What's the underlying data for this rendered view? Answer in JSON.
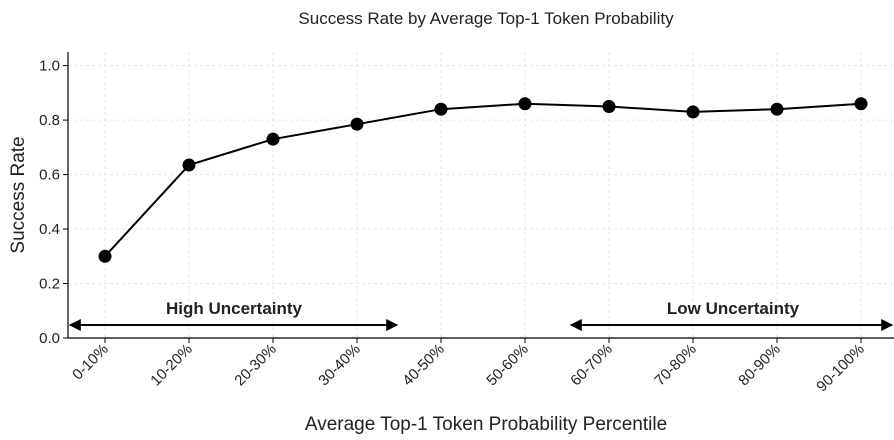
{
  "chart_data": {
    "type": "line",
    "title": "Success Rate by Average Top-1 Token Probability",
    "x_label": "Average Top-1 Token Probability Percentile",
    "y_label": "Success Rate",
    "categories": [
      "0-10%",
      "10-20%",
      "20-30%",
      "30-40%",
      "40-50%",
      "50-60%",
      "60-70%",
      "70-80%",
      "80-90%",
      "90-100%"
    ],
    "series": [
      {
        "name": "Success Rate",
        "color": "#000000",
        "values": [
          0.3,
          0.635,
          0.73,
          0.785,
          0.84,
          0.86,
          0.85,
          0.83,
          0.84,
          0.86
        ]
      }
    ],
    "ylim": [
      0,
      1.05
    ],
    "yticks": [
      {
        "value": 0,
        "label": "0.0"
      },
      0.2,
      0.4,
      0.6,
      0.8,
      {
        "value": 1,
        "label": "1.0"
      }
    ],
    "grid": true,
    "annotations": [
      "High Uncertainty",
      "Low Uncertainty"
    ]
  }
}
